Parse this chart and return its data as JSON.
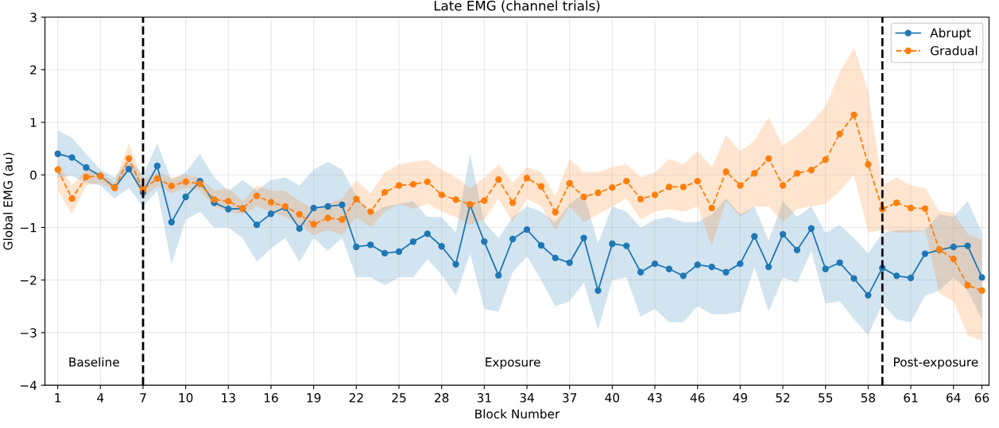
{
  "chart_data": {
    "type": "line",
    "title": "Late EMG (channel trials)",
    "xlabel": "Block Number",
    "ylabel": "Global EMG (au)",
    "x": [
      1,
      2,
      3,
      4,
      5,
      6,
      7,
      8,
      9,
      10,
      11,
      12,
      13,
      14,
      15,
      16,
      17,
      18,
      19,
      20,
      21,
      22,
      23,
      24,
      25,
      26,
      27,
      28,
      29,
      30,
      31,
      32,
      33,
      34,
      35,
      36,
      37,
      38,
      39,
      40,
      41,
      42,
      43,
      44,
      45,
      46,
      47,
      48,
      49,
      50,
      51,
      52,
      53,
      54,
      55,
      56,
      57,
      58,
      59,
      60,
      61,
      62,
      63,
      64,
      65,
      66
    ],
    "series": [
      {
        "name": "Abrupt",
        "color": "#1f77b4",
        "line_style": "solid",
        "values": [
          0.4,
          0.33,
          0.14,
          -0.02,
          -0.24,
          0.11,
          -0.33,
          0.17,
          -0.9,
          -0.42,
          -0.12,
          -0.53,
          -0.65,
          -0.64,
          -0.95,
          -0.74,
          -0.62,
          -1.02,
          -0.63,
          -0.6,
          -0.57,
          -1.37,
          -1.33,
          -1.49,
          -1.46,
          -1.27,
          -1.12,
          -1.36,
          -1.7,
          -0.57,
          -1.27,
          -1.91,
          -1.22,
          -1.04,
          -1.34,
          -1.58,
          -1.67,
          -1.2,
          -2.2,
          -1.31,
          -1.35,
          -1.85,
          -1.69,
          -1.79,
          -1.92,
          -1.71,
          -1.75,
          -1.85,
          -1.69,
          -1.17,
          -1.75,
          -1.13,
          -1.43,
          -1.02,
          -1.79,
          -1.67,
          -1.97,
          -2.29,
          -1.77,
          -1.92,
          -1.96,
          -1.5,
          -1.43,
          -1.37,
          -1.35,
          -1.95
        ],
        "upper": [
          0.85,
          0.7,
          0.4,
          0.1,
          -0.05,
          0.3,
          0.0,
          0.6,
          -0.1,
          0.05,
          0.4,
          -0.05,
          -0.3,
          -0.1,
          -0.3,
          -0.1,
          -0.05,
          -0.2,
          0.1,
          0.25,
          0.1,
          -0.4,
          -0.75,
          -0.6,
          -0.55,
          -0.5,
          -0.8,
          -0.8,
          -1.1,
          0.4,
          -0.9,
          -1.2,
          -0.8,
          -0.6,
          -0.7,
          -0.9,
          -0.55,
          -0.35,
          -1.3,
          -0.6,
          -0.7,
          -1.0,
          -0.85,
          -0.8,
          -0.9,
          -0.9,
          -0.75,
          -0.45,
          -0.75,
          -0.6,
          -1.25,
          -0.5,
          -0.8,
          -0.6,
          -1.1,
          -0.95,
          -1.2,
          -1.5,
          -1.1,
          -1.05,
          -1.05,
          -1.05,
          -0.75,
          -0.8,
          -0.5,
          -1.1
        ],
        "lower": [
          -0.05,
          -0.02,
          -0.15,
          -0.2,
          -0.45,
          -0.25,
          -0.6,
          -0.3,
          -1.7,
          -0.85,
          -0.7,
          -1.0,
          -1.0,
          -1.2,
          -1.65,
          -1.4,
          -1.2,
          -1.65,
          -1.2,
          -1.45,
          -1.2,
          -1.95,
          -1.95,
          -2.1,
          -1.95,
          -1.95,
          -1.6,
          -1.9,
          -2.3,
          -1.5,
          -2.55,
          -2.6,
          -1.85,
          -1.55,
          -2.0,
          -2.5,
          -2.4,
          -2.05,
          -2.95,
          -2.0,
          -1.95,
          -2.7,
          -2.55,
          -2.8,
          -2.8,
          -2.5,
          -2.65,
          -2.65,
          -2.6,
          -1.75,
          -2.6,
          -1.95,
          -2.05,
          -1.45,
          -2.45,
          -2.4,
          -2.75,
          -3.05,
          -2.45,
          -2.75,
          -2.8,
          -2.3,
          -2.2,
          -1.95,
          -2.2,
          -2.75
        ]
      },
      {
        "name": "Gradual",
        "color": "#ff7f0e",
        "line_style": "dashed",
        "values": [
          0.1,
          -0.45,
          -0.04,
          -0.02,
          -0.25,
          0.31,
          -0.28,
          -0.07,
          -0.21,
          -0.13,
          -0.17,
          -0.47,
          -0.5,
          -0.64,
          -0.4,
          -0.52,
          -0.6,
          -0.75,
          -0.94,
          -0.82,
          -0.85,
          -0.46,
          -0.7,
          -0.33,
          -0.2,
          -0.18,
          -0.13,
          -0.38,
          -0.47,
          -0.56,
          -0.49,
          -0.09,
          -0.53,
          -0.06,
          -0.22,
          -0.71,
          -0.16,
          -0.42,
          -0.34,
          -0.24,
          -0.12,
          -0.46,
          -0.38,
          -0.23,
          -0.23,
          -0.12,
          -0.63,
          0.06,
          -0.2,
          0.03,
          0.31,
          -0.2,
          0.03,
          0.09,
          0.29,
          0.78,
          1.14,
          0.2,
          -0.65,
          -0.53,
          -0.63,
          -0.64,
          -1.42,
          -1.6,
          -2.1,
          -2.2
        ],
        "upper": [
          0.25,
          -0.2,
          0.1,
          0.05,
          -0.15,
          0.6,
          -0.1,
          0.05,
          -0.05,
          0.0,
          -0.05,
          -0.3,
          -0.25,
          -0.5,
          -0.2,
          -0.3,
          -0.3,
          -0.5,
          -0.65,
          -0.55,
          -0.45,
          -0.1,
          -0.35,
          0.05,
          0.2,
          0.25,
          0.28,
          0.1,
          -0.05,
          -0.25,
          -0.05,
          0.2,
          -0.15,
          0.15,
          0.05,
          -0.4,
          0.3,
          0.05,
          0.05,
          0.15,
          0.2,
          -0.05,
          0.05,
          0.3,
          0.2,
          0.45,
          0.15,
          0.75,
          0.45,
          0.65,
          1.1,
          0.55,
          0.75,
          1.0,
          1.3,
          1.95,
          2.42,
          1.6,
          -0.2,
          -0.05,
          -0.2,
          -0.25,
          -0.69,
          -0.72,
          -1.12,
          -1.23
        ],
        "lower": [
          -0.3,
          -0.75,
          -0.2,
          -0.15,
          -0.3,
          0.1,
          -0.45,
          -0.2,
          -0.35,
          -0.25,
          -0.3,
          -0.6,
          -0.7,
          -0.75,
          -0.6,
          -0.7,
          -0.8,
          -0.95,
          -1.15,
          -1.05,
          -1.15,
          -0.8,
          -1.0,
          -0.7,
          -0.55,
          -0.65,
          -0.55,
          -0.7,
          -0.8,
          -0.95,
          -0.85,
          -0.45,
          -0.9,
          -0.45,
          -0.6,
          -1.05,
          -0.6,
          -0.9,
          -0.75,
          -0.6,
          -0.45,
          -0.85,
          -0.7,
          -0.65,
          -0.7,
          -0.6,
          -1.35,
          -0.5,
          -0.8,
          -0.6,
          -0.6,
          -0.9,
          -0.65,
          -0.6,
          -0.55,
          -0.3,
          0.0,
          -1.1,
          -1.05,
          -1.1,
          -1.1,
          -1.05,
          -2.25,
          -2.4,
          -3.05,
          -3.15
        ]
      }
    ],
    "marker": "circle",
    "xlim": [
      0.1,
      66.5
    ],
    "xticks": [
      1,
      4,
      7,
      10,
      13,
      16,
      19,
      22,
      25,
      28,
      31,
      34,
      37,
      40,
      43,
      46,
      49,
      52,
      55,
      58,
      61,
      64,
      66
    ],
    "ylim": [
      -4,
      3
    ],
    "yticks": [
      {
        "value": -4,
        "label": "−4"
      },
      {
        "value": -3,
        "label": "−3"
      },
      {
        "value": -2,
        "label": "−2"
      },
      {
        "value": -1,
        "label": "−1"
      },
      0,
      1,
      2,
      3
    ],
    "ref_lines": [
      {
        "axis": "x",
        "value": 7,
        "color": "#000000",
        "line_style": "dashed"
      },
      {
        "axis": "x",
        "value": 59,
        "color": "#000000",
        "line_style": "dashed"
      }
    ],
    "annotations": [
      "Baseline",
      "Exposure",
      "Post-exposure"
    ],
    "grid": true,
    "legend": "top right"
  }
}
